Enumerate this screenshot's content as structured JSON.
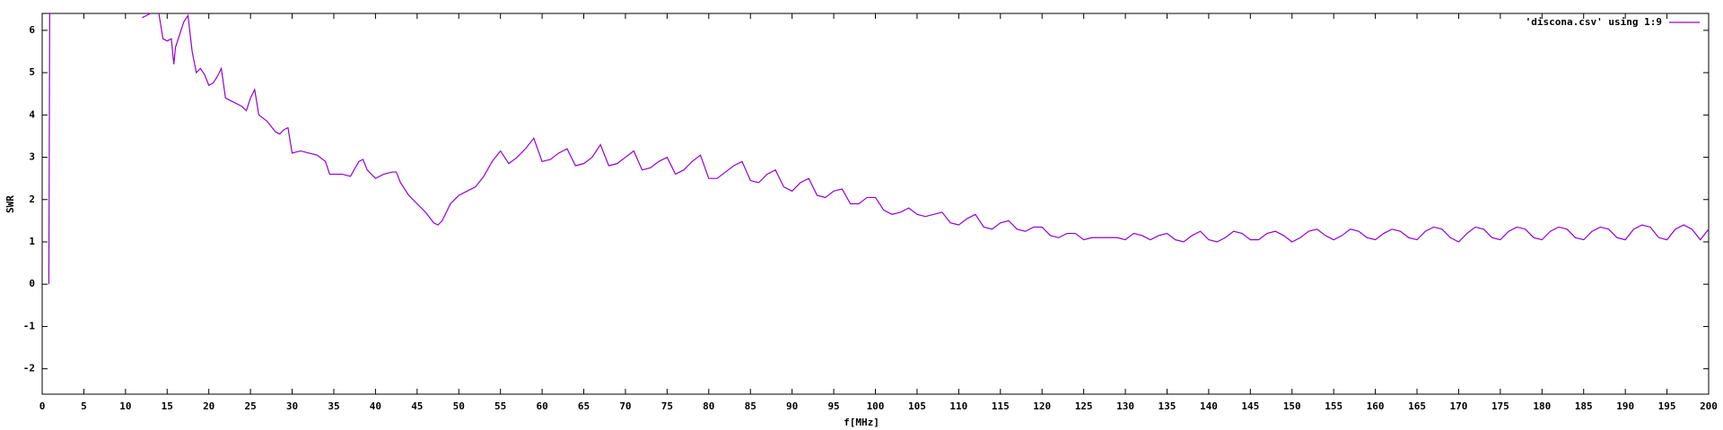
{
  "chart_data": {
    "type": "line",
    "xlabel": "f[MHz]",
    "ylabel": "SWR",
    "x": [
      0.8,
      0.9,
      1,
      12,
      12.5,
      13,
      13.5,
      14,
      14.5,
      15,
      15.5,
      15.8,
      16,
      16.5,
      17,
      17.5,
      18,
      18.5,
      19,
      19.5,
      20,
      20.5,
      21,
      21.5,
      22,
      22.5,
      23,
      24,
      24.5,
      25,
      25.5,
      26,
      27,
      28,
      28.5,
      29,
      29.5,
      30,
      31,
      32,
      33,
      34,
      34.5,
      35,
      36,
      37,
      38,
      38.5,
      39,
      40,
      41,
      42,
      42.5,
      43,
      44,
      45,
      46,
      47,
      47.5,
      48,
      49,
      50,
      51,
      52,
      53,
      54,
      55,
      56,
      57,
      58,
      59,
      60,
      61,
      62,
      63,
      64,
      65,
      66,
      67,
      68,
      69,
      70,
      71,
      72,
      73,
      74,
      75,
      76,
      77,
      78,
      79,
      80,
      81,
      82,
      83,
      84,
      85,
      86,
      87,
      88,
      89,
      90,
      91,
      92,
      93,
      94,
      95,
      96,
      97,
      98,
      99,
      100,
      101,
      102,
      103,
      104,
      105,
      106,
      107,
      108,
      109,
      110,
      111,
      112,
      113,
      114,
      115,
      116,
      117,
      118,
      119,
      120,
      121,
      122,
      123,
      124,
      125,
      126,
      127,
      128,
      129,
      130,
      131,
      132,
      133,
      134,
      135,
      136,
      137,
      138,
      139,
      140,
      141,
      142,
      143,
      144,
      145,
      146,
      147,
      148,
      149,
      150,
      151,
      152,
      153,
      154,
      155,
      156,
      157,
      158,
      159,
      160,
      161,
      162,
      163,
      164,
      165,
      166,
      167,
      168,
      169,
      170,
      171,
      172,
      173,
      174,
      175,
      176,
      177,
      178,
      179,
      180,
      181,
      182,
      183,
      184,
      185,
      186,
      187,
      188,
      189,
      190,
      191,
      192,
      193,
      194,
      195,
      196,
      197,
      198,
      199,
      200
    ],
    "series": [
      {
        "name": "'discona.csv' using 1:9",
        "color": "#9400d3",
        "values": [
          0,
          6.4,
          null,
          6.3,
          6.35,
          6.4,
          null,
          6.4,
          5.8,
          5.75,
          5.8,
          5.2,
          5.6,
          5.9,
          6.2,
          6.35,
          5.5,
          5.0,
          5.1,
          4.95,
          4.7,
          4.75,
          4.9,
          5.1,
          4.4,
          4.35,
          4.3,
          4.2,
          4.1,
          4.4,
          4.6,
          4.0,
          3.85,
          3.6,
          3.55,
          3.65,
          3.7,
          3.1,
          3.15,
          3.1,
          3.05,
          2.9,
          2.6,
          2.6,
          2.6,
          2.55,
          2.9,
          2.95,
          2.7,
          2.5,
          2.6,
          2.65,
          2.65,
          2.4,
          2.1,
          1.9,
          1.7,
          1.45,
          1.4,
          1.5,
          1.9,
          2.1,
          2.2,
          2.3,
          2.55,
          2.9,
          3.15,
          2.85,
          3.0,
          3.2,
          3.45,
          2.9,
          2.95,
          3.1,
          3.2,
          2.8,
          2.85,
          3.0,
          3.3,
          2.8,
          2.85,
          3.0,
          3.15,
          2.7,
          2.75,
          2.9,
          3.0,
          2.6,
          2.7,
          2.9,
          3.05,
          2.5,
          2.5,
          2.65,
          2.8,
          2.9,
          2.45,
          2.4,
          2.6,
          2.7,
          2.3,
          2.2,
          2.4,
          2.5,
          2.1,
          2.05,
          2.2,
          2.25,
          1.9,
          1.9,
          2.05,
          2.05,
          1.75,
          1.65,
          1.7,
          1.8,
          1.65,
          1.6,
          1.65,
          1.7,
          1.45,
          1.4,
          1.55,
          1.65,
          1.35,
          1.3,
          1.45,
          1.5,
          1.3,
          1.25,
          1.35,
          1.35,
          1.15,
          1.1,
          1.2,
          1.2,
          1.05,
          1.1,
          1.1,
          1.1,
          1.1,
          1.05,
          1.2,
          1.15,
          1.05,
          1.15,
          1.2,
          1.05,
          1.0,
          1.15,
          1.25,
          1.05,
          1.0,
          1.1,
          1.25,
          1.2,
          1.05,
          1.05,
          1.2,
          1.25,
          1.15,
          1.0,
          1.1,
          1.25,
          1.3,
          1.15,
          1.05,
          1.15,
          1.3,
          1.25,
          1.1,
          1.05,
          1.2,
          1.3,
          1.25,
          1.1,
          1.05,
          1.25,
          1.35,
          1.3,
          1.1,
          1.0,
          1.2,
          1.35,
          1.3,
          1.1,
          1.05,
          1.25,
          1.35,
          1.3,
          1.1,
          1.05,
          1.25,
          1.35,
          1.3,
          1.1,
          1.05,
          1.25,
          1.35,
          1.3,
          1.1,
          1.05,
          1.3,
          1.4,
          1.35,
          1.1,
          1.05,
          1.3,
          1.4,
          1.3,
          1.05,
          1.3
        ]
      }
    ],
    "xlim": [
      0,
      200
    ],
    "ylim": [
      -2.6,
      6.4
    ],
    "xticks": [
      0,
      5,
      10,
      15,
      20,
      25,
      30,
      35,
      40,
      45,
      50,
      55,
      60,
      65,
      70,
      75,
      80,
      85,
      90,
      95,
      100,
      105,
      110,
      115,
      120,
      125,
      130,
      135,
      140,
      145,
      150,
      155,
      160,
      165,
      170,
      175,
      180,
      185,
      190,
      195,
      200
    ],
    "yticks": [
      -2,
      -1,
      0,
      1,
      2,
      3,
      4,
      5,
      6
    ],
    "grid": false,
    "legend": "top-right"
  }
}
